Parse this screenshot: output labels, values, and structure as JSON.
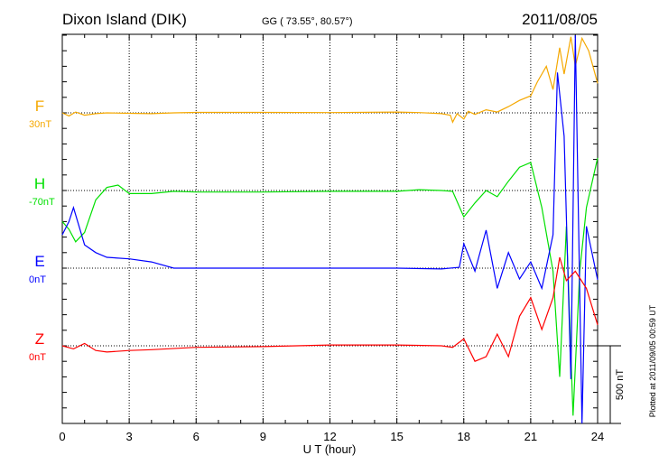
{
  "chart_data": {
    "type": "line",
    "title": "Dixon Island (DIK)",
    "subtitle": "GG ( 73.55°,  80.57°)",
    "date": "2011/08/05",
    "xlabel": "U T (hour)",
    "xlim": [
      0,
      24
    ],
    "xticks": [
      "0",
      "3",
      "6",
      "9",
      "12",
      "15",
      "18",
      "21",
      "24"
    ],
    "scale_label": "500 nT",
    "plotted_note": "Plotted at 2011/09/05 00:59 UT",
    "grid": true,
    "series": [
      {
        "name": "F",
        "offset_label": "30nT",
        "color": "#f5a800",
        "points": [
          [
            0,
            0
          ],
          [
            0.3,
            -20
          ],
          [
            0.6,
            5
          ],
          [
            1,
            -15
          ],
          [
            1.5,
            -5
          ],
          [
            2,
            0
          ],
          [
            3,
            -3
          ],
          [
            4,
            -5
          ],
          [
            5,
            0
          ],
          [
            6,
            3
          ],
          [
            9,
            3
          ],
          [
            12,
            2
          ],
          [
            15,
            5
          ],
          [
            16,
            2
          ],
          [
            17,
            -5
          ],
          [
            17.4,
            -15
          ],
          [
            17.5,
            -60
          ],
          [
            17.7,
            -5
          ],
          [
            18,
            -40
          ],
          [
            18.2,
            10
          ],
          [
            18.5,
            -10
          ],
          [
            19,
            20
          ],
          [
            19.5,
            5
          ],
          [
            20,
            40
          ],
          [
            20.5,
            80
          ],
          [
            21,
            110
          ],
          [
            21.3,
            200
          ],
          [
            21.7,
            300
          ],
          [
            22,
            150
          ],
          [
            22.3,
            420
          ],
          [
            22.5,
            250
          ],
          [
            22.8,
            490
          ],
          [
            23,
            300
          ],
          [
            23.3,
            480
          ],
          [
            23.6,
            400
          ],
          [
            24,
            190
          ]
        ]
      },
      {
        "name": "H",
        "offset_label": "-70nT",
        "color": "#00e000",
        "points": [
          [
            0,
            -200
          ],
          [
            0.3,
            -250
          ],
          [
            0.6,
            -330
          ],
          [
            1,
            -270
          ],
          [
            1.5,
            -60
          ],
          [
            2,
            20
          ],
          [
            2.5,
            35
          ],
          [
            3,
            -20
          ],
          [
            4,
            -20
          ],
          [
            5,
            -5
          ],
          [
            6,
            -10
          ],
          [
            9,
            -10
          ],
          [
            12,
            -5
          ],
          [
            15,
            -5
          ],
          [
            16,
            5
          ],
          [
            17,
            0
          ],
          [
            17.5,
            -5
          ],
          [
            18,
            -170
          ],
          [
            18.5,
            -80
          ],
          [
            19,
            0
          ],
          [
            19.5,
            -40
          ],
          [
            20,
            60
          ],
          [
            20.5,
            150
          ],
          [
            21,
            180
          ],
          [
            21.5,
            -110
          ],
          [
            22,
            -520
          ],
          [
            22.3,
            -1200
          ],
          [
            22.6,
            -230
          ],
          [
            22.9,
            -1450
          ],
          [
            23.2,
            -520
          ],
          [
            23.5,
            -110
          ],
          [
            24,
            210
          ]
        ]
      },
      {
        "name": "E",
        "offset_label": "0nT",
        "color": "#0000ff",
        "points": [
          [
            0,
            215
          ],
          [
            0.3,
            300
          ],
          [
            0.5,
            390
          ],
          [
            1,
            150
          ],
          [
            1.5,
            100
          ],
          [
            2,
            70
          ],
          [
            3,
            60
          ],
          [
            4,
            40
          ],
          [
            5,
            0
          ],
          [
            8,
            0
          ],
          [
            12,
            0
          ],
          [
            15,
            0
          ],
          [
            17,
            -5
          ],
          [
            17.8,
            5
          ],
          [
            18,
            157
          ],
          [
            18.5,
            -20
          ],
          [
            19,
            245
          ],
          [
            19.5,
            -130
          ],
          [
            20,
            100
          ],
          [
            20.5,
            -70
          ],
          [
            21,
            40
          ],
          [
            21.5,
            -130
          ],
          [
            22,
            215
          ],
          [
            22.2,
            1260
          ],
          [
            22.5,
            850
          ],
          [
            22.8,
            -715
          ],
          [
            23,
            1500
          ],
          [
            23.3,
            -1000
          ],
          [
            23.5,
            270
          ],
          [
            24,
            -75
          ]
        ]
      },
      {
        "name": "Z",
        "offset_label": "0nT",
        "color": "#ff0000",
        "points": [
          [
            0,
            0
          ],
          [
            0.5,
            -20
          ],
          [
            1,
            15
          ],
          [
            1.5,
            -30
          ],
          [
            2,
            -40
          ],
          [
            3,
            -30
          ],
          [
            4,
            -25
          ],
          [
            6,
            -10
          ],
          [
            9,
            -5
          ],
          [
            12,
            5
          ],
          [
            15,
            5
          ],
          [
            17,
            0
          ],
          [
            17.5,
            -10
          ],
          [
            18,
            45
          ],
          [
            18.5,
            -100
          ],
          [
            19,
            -70
          ],
          [
            19.5,
            75
          ],
          [
            20,
            -70
          ],
          [
            20.5,
            190
          ],
          [
            21,
            310
          ],
          [
            21.5,
            105
          ],
          [
            22,
            310
          ],
          [
            22.3,
            570
          ],
          [
            22.6,
            420
          ],
          [
            23,
            480
          ],
          [
            23.5,
            370
          ],
          [
            24,
            135
          ]
        ]
      }
    ]
  }
}
